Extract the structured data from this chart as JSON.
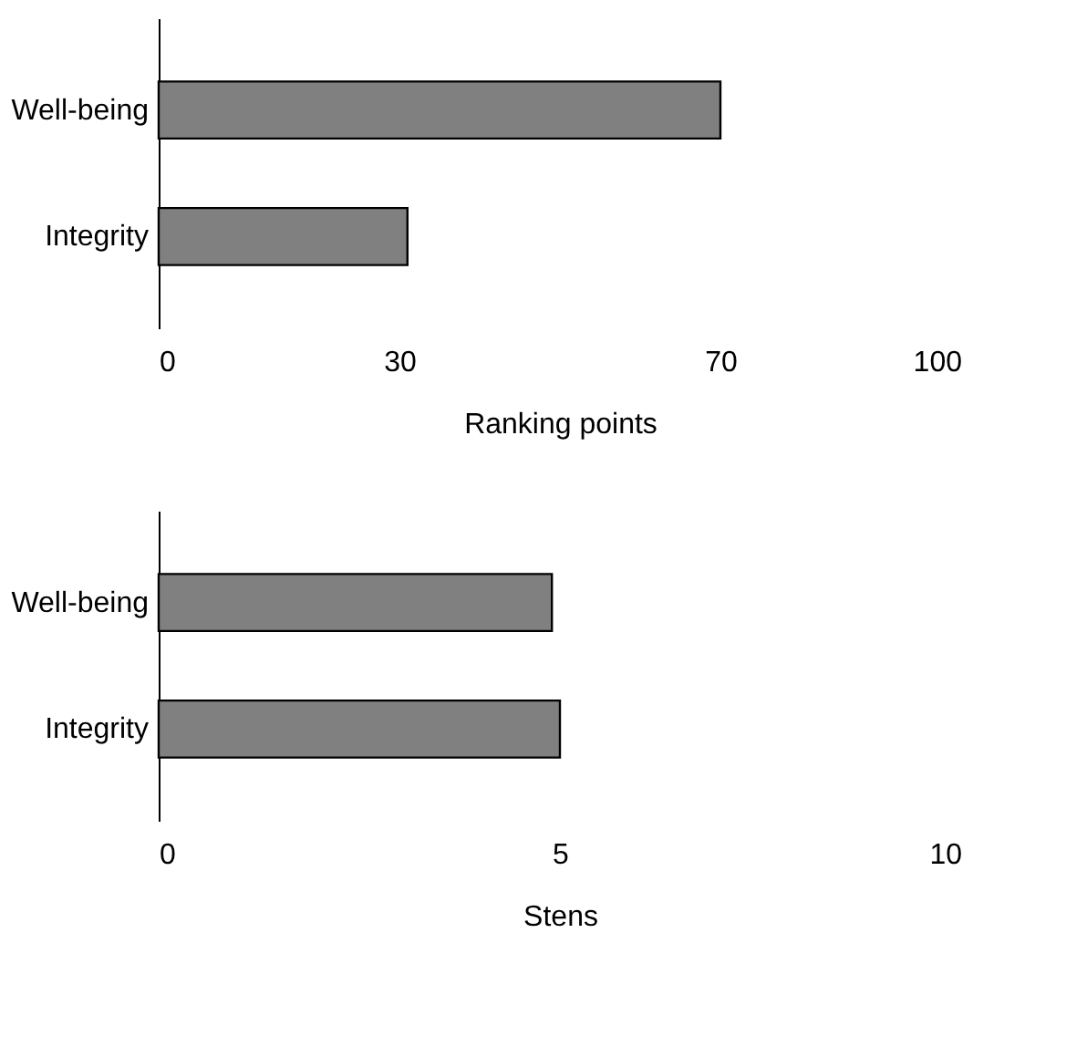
{
  "chart_data": [
    {
      "type": "bar",
      "orientation": "horizontal",
      "categories": [
        "Well-being",
        "Integrity"
      ],
      "values": [
        70,
        31
      ],
      "color": "#808080",
      "xlabel": "Ranking points",
      "xlim": [
        0,
        100
      ],
      "xticks": [
        0,
        30,
        70,
        100
      ],
      "grid": false
    },
    {
      "type": "bar",
      "orientation": "horizontal",
      "categories": [
        "Well-being",
        "Integrity"
      ],
      "values": [
        4.9,
        5.0
      ],
      "color": "#808080",
      "xlabel": "Stens",
      "xlim": [
        0,
        10
      ],
      "xticks": [
        0,
        5,
        10
      ],
      "grid": false
    }
  ]
}
